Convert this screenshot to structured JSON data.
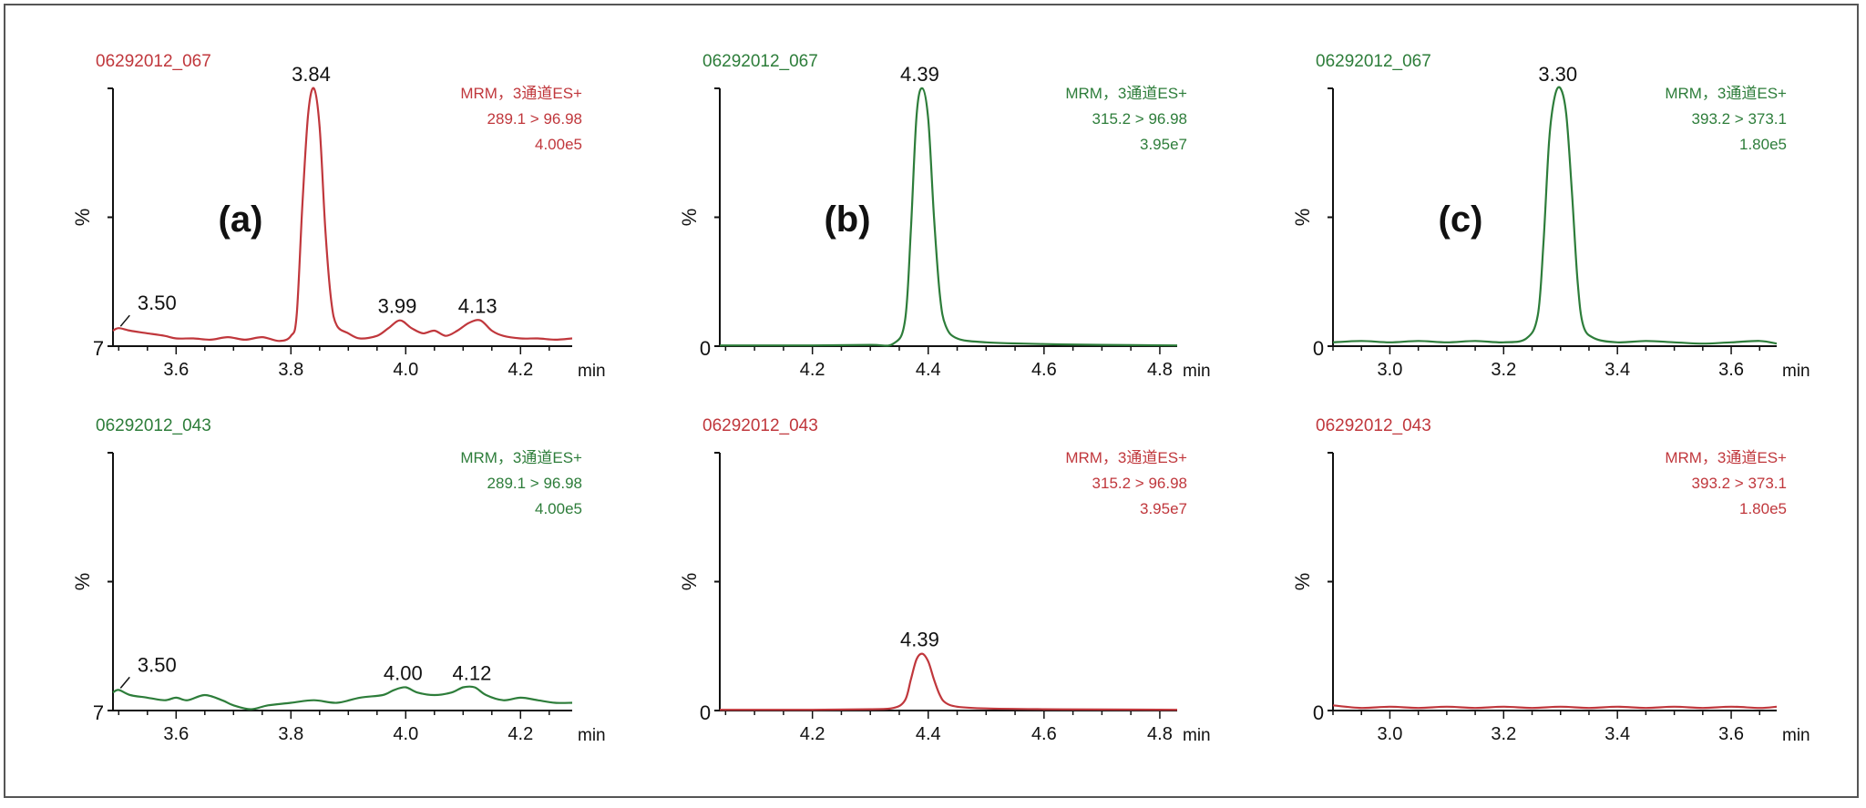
{
  "colors": {
    "red": "#c0373c",
    "green": "#2d7d3a",
    "axis": "#111111",
    "text": "#111111"
  },
  "chart_data": [
    {
      "type": "line",
      "panel_label": "(a)",
      "color": "red",
      "sample": "06292012_067",
      "method": "MRM，3通道ES+",
      "transition": "289.1 > 96.98",
      "intensity": "4.00e5",
      "ylabel": "%",
      "y_zero_label": "7",
      "xlabel": "min",
      "xlim": [
        3.49,
        4.29
      ],
      "ylim": [
        0,
        100
      ],
      "xticks": [
        3.6,
        3.8,
        4.0,
        4.2
      ],
      "xtick_labels": [
        "3.6",
        "3.8",
        "4.0",
        "4.2"
      ],
      "series": [
        {
          "x": [
            3.49,
            3.5,
            3.52,
            3.55,
            3.58,
            3.6,
            3.63,
            3.66,
            3.69,
            3.72,
            3.75,
            3.78,
            3.8,
            3.81,
            3.82,
            3.83,
            3.84,
            3.85,
            3.86,
            3.87,
            3.88,
            3.9,
            3.92,
            3.95,
            3.97,
            3.99,
            4.01,
            4.03,
            4.05,
            4.07,
            4.09,
            4.11,
            4.13,
            4.15,
            4.17,
            4.2,
            4.23,
            4.26,
            4.29
          ],
          "y": [
            6,
            7,
            6,
            5,
            4,
            3,
            3,
            2.5,
            3.5,
            2.5,
            3.5,
            2,
            4,
            12,
            55,
            90,
            100,
            85,
            45,
            18,
            8,
            5,
            3,
            4,
            7,
            10,
            7,
            5,
            6,
            4,
            6,
            9,
            10,
            6,
            4,
            3,
            3,
            2.5,
            3
          ]
        }
      ],
      "annotations": [
        {
          "x": 3.5,
          "y": 7,
          "label": "3.50"
        },
        {
          "x": 3.84,
          "y": 100,
          "label": "3.84"
        },
        {
          "x": 3.99,
          "y": 10,
          "label": "3.99"
        },
        {
          "x": 4.13,
          "y": 10,
          "label": "4.13"
        }
      ]
    },
    {
      "type": "line",
      "panel_label": "(b)",
      "color": "green",
      "sample": "06292012_067",
      "method": "MRM，3通道ES+",
      "transition": "315.2 > 96.98",
      "intensity": "3.95e7",
      "ylabel": "%",
      "y_zero_label": "0",
      "xlabel": "min",
      "xlim": [
        4.04,
        4.83
      ],
      "ylim": [
        0,
        100
      ],
      "xticks": [
        4.2,
        4.4,
        4.6,
        4.8
      ],
      "xtick_labels": [
        "4.2",
        "4.4",
        "4.6",
        "4.8"
      ],
      "series": [
        {
          "x": [
            4.04,
            4.2,
            4.3,
            4.34,
            4.36,
            4.37,
            4.38,
            4.39,
            4.4,
            4.41,
            4.42,
            4.43,
            4.45,
            4.5,
            4.6,
            4.7,
            4.83
          ],
          "y": [
            0.3,
            0.3,
            0.5,
            1,
            10,
            45,
            90,
            100,
            88,
            50,
            20,
            8,
            3,
            1.5,
            0.8,
            0.5,
            0.3
          ]
        }
      ],
      "annotations": [
        {
          "x": 4.39,
          "y": 100,
          "label": "4.39"
        }
      ]
    },
    {
      "type": "line",
      "panel_label": "(c)",
      "color": "green",
      "sample": "06292012_067",
      "method": "MRM，3通道ES+",
      "transition": "393.2 > 373.1",
      "intensity": "1.80e5",
      "ylabel": "%",
      "y_zero_label": "0",
      "xlabel": "min",
      "xlim": [
        2.9,
        3.68
      ],
      "ylim": [
        0,
        100
      ],
      "xticks": [
        3.0,
        3.2,
        3.4,
        3.6
      ],
      "xtick_labels": [
        "3.0",
        "3.2",
        "3.4",
        "3.6"
      ],
      "series": [
        {
          "x": [
            2.9,
            2.95,
            3.0,
            3.05,
            3.1,
            3.15,
            3.2,
            3.24,
            3.26,
            3.27,
            3.28,
            3.29,
            3.3,
            3.31,
            3.32,
            3.33,
            3.34,
            3.36,
            3.4,
            3.45,
            3.5,
            3.55,
            3.6,
            3.65,
            3.68
          ],
          "y": [
            1.5,
            2,
            1.5,
            2,
            1.5,
            2,
            1.5,
            3,
            12,
            40,
            80,
            97,
            100,
            90,
            60,
            25,
            8,
            3,
            1.5,
            2,
            1.5,
            1,
            1.5,
            2,
            1
          ]
        }
      ],
      "annotations": [
        {
          "x": 3.3,
          "y": 100,
          "label": "3.30"
        }
      ]
    },
    {
      "type": "line",
      "panel_label": "",
      "color": "green",
      "sample": "06292012_043",
      "method": "MRM，3通道ES+",
      "transition": "289.1 > 96.98",
      "intensity": "4.00e5",
      "ylabel": "%",
      "y_zero_label": "7",
      "xlabel": "min",
      "xlim": [
        3.49,
        4.29
      ],
      "ylim": [
        0,
        100
      ],
      "xticks": [
        3.6,
        3.8,
        4.0,
        4.2
      ],
      "xtick_labels": [
        "3.6",
        "3.8",
        "4.0",
        "4.2"
      ],
      "series": [
        {
          "x": [
            3.49,
            3.5,
            3.52,
            3.55,
            3.58,
            3.6,
            3.62,
            3.65,
            3.68,
            3.7,
            3.73,
            3.76,
            3.8,
            3.84,
            3.88,
            3.92,
            3.96,
            3.98,
            4.0,
            4.02,
            4.05,
            4.08,
            4.1,
            4.12,
            4.14,
            4.17,
            4.2,
            4.23,
            4.26,
            4.29
          ],
          "y": [
            7,
            8,
            6,
            5,
            4,
            5,
            4,
            6,
            4,
            2,
            0.5,
            2,
            3,
            4,
            3,
            5,
            6,
            8,
            9,
            7,
            6,
            7,
            9,
            9,
            6,
            4,
            5,
            4,
            3,
            3
          ]
        }
      ],
      "annotations": [
        {
          "x": 3.5,
          "y": 8,
          "label": "3.50"
        },
        {
          "x": 4.0,
          "y": 9,
          "label": "4.00"
        },
        {
          "x": 4.12,
          "y": 9,
          "label": "4.12"
        }
      ]
    },
    {
      "type": "line",
      "panel_label": "",
      "color": "red",
      "sample": "06292012_043",
      "method": "MRM，3通道ES+",
      "transition": "315.2 > 96.98",
      "intensity": "3.95e7",
      "ylabel": "%",
      "y_zero_label": "0",
      "xlabel": "min",
      "xlim": [
        4.04,
        4.83
      ],
      "ylim": [
        0,
        100
      ],
      "xticks": [
        4.2,
        4.4,
        4.6,
        4.8
      ],
      "xtick_labels": [
        "4.2",
        "4.4",
        "4.6",
        "4.8"
      ],
      "series": [
        {
          "x": [
            4.04,
            4.2,
            4.3,
            4.34,
            4.36,
            4.37,
            4.38,
            4.39,
            4.4,
            4.41,
            4.42,
            4.43,
            4.45,
            4.5,
            4.6,
            4.7,
            4.83
          ],
          "y": [
            0.3,
            0.3,
            0.5,
            1,
            4,
            12,
            20,
            22,
            19,
            12,
            6,
            3,
            1.5,
            0.8,
            0.5,
            0.4,
            0.3
          ]
        }
      ],
      "annotations": [
        {
          "x": 4.39,
          "y": 22,
          "label": "4.39"
        }
      ]
    },
    {
      "type": "line",
      "panel_label": "",
      "color": "red",
      "sample": "06292012_043",
      "method": "MRM，3通道ES+",
      "transition": "393.2 > 373.1",
      "intensity": "1.80e5",
      "ylabel": "%",
      "y_zero_label": "0",
      "xlabel": "min",
      "xlim": [
        2.9,
        3.68
      ],
      "ylim": [
        0,
        100
      ],
      "xticks": [
        3.0,
        3.2,
        3.4,
        3.6
      ],
      "xtick_labels": [
        "3.0",
        "3.2",
        "3.4",
        "3.6"
      ],
      "series": [
        {
          "x": [
            2.9,
            2.95,
            3.0,
            3.05,
            3.1,
            3.15,
            3.2,
            3.25,
            3.3,
            3.35,
            3.4,
            3.45,
            3.5,
            3.55,
            3.6,
            3.65,
            3.68
          ],
          "y": [
            2,
            1,
            1.5,
            1,
            1.5,
            1,
            1.5,
            1,
            1.5,
            1,
            1.5,
            1,
            1.5,
            1,
            1.5,
            1,
            1.5
          ]
        }
      ],
      "annotations": []
    }
  ]
}
